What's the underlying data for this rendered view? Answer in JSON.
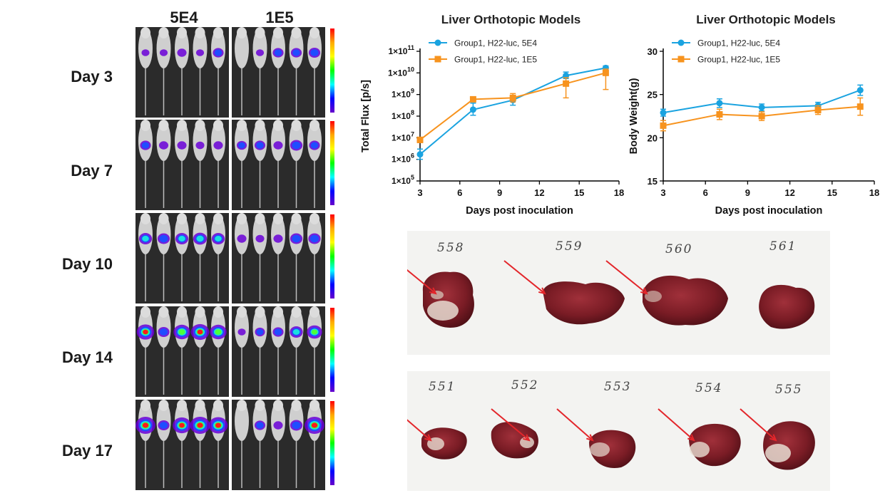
{
  "imaging": {
    "columns": [
      "5E4",
      "1E5"
    ],
    "days": [
      "Day 3",
      "Day 7",
      "Day 10",
      "Day 14",
      "Day 17"
    ],
    "scale_colors": [
      "#ff0000",
      "#ffaa00",
      "#ffff00",
      "#00ff00",
      "#00ffff",
      "#0000ff",
      "#6600cc"
    ]
  },
  "chart_data": [
    {
      "type": "line",
      "title": "Liver Orthotopic Models",
      "xlabel": "Days post inoculation",
      "ylabel": "Total Flux [p/s]",
      "yscale": "log",
      "xlim": [
        3,
        18
      ],
      "ylim": [
        100000,
        100000000000
      ],
      "x_ticks": [
        "3",
        "6",
        "9",
        "12",
        "15",
        "18"
      ],
      "y_tick_labels": [
        {
          "value": 100000,
          "mant": "1×10",
          "exp": "5"
        },
        {
          "value": 1000000,
          "mant": "1×10",
          "exp": "6"
        },
        {
          "value": 10000000,
          "mant": "1×10",
          "exp": "7"
        },
        {
          "value": 100000000,
          "mant": "1×10",
          "exp": "8"
        },
        {
          "value": 1000000000,
          "mant": "1×10",
          "exp": "9"
        },
        {
          "value": 10000000000,
          "mant": "1×10",
          "exp": "10"
        },
        {
          "value": 100000000000,
          "mant": "1×10",
          "exp": "11"
        }
      ],
      "legend_position": "top-left",
      "series": [
        {
          "name": "Group1, H22-luc, 5E4",
          "color": "#1aa3e0",
          "marker": "circle",
          "x": [
            3,
            7,
            10,
            14,
            17
          ],
          "y": [
            1700000,
            200000000,
            550000000,
            7500000000,
            17000000000
          ],
          "err_up": [
            3000000,
            400000000,
            900000000,
            11000000000,
            21000000000
          ],
          "err_down": [
            1000000,
            110000000,
            320000000,
            5500000000,
            14000000000
          ]
        },
        {
          "name": "Group1, H22-luc, 1E5",
          "color": "#f7931e",
          "marker": "square",
          "x": [
            3,
            7,
            10,
            14,
            17
          ],
          "y": [
            8000000,
            600000000,
            700000000,
            3200000000,
            10000000000
          ],
          "err_up": [
            10000000,
            700000000,
            1100000000,
            6000000000,
            15000000000
          ],
          "err_down": [
            6000000,
            500000000,
            450000000,
            700000000,
            1700000000
          ]
        }
      ]
    },
    {
      "type": "line",
      "title": "Liver Orthotopic Models",
      "xlabel": "Days post inoculation",
      "ylabel": "Body Weight(g)",
      "xlim": [
        3,
        18
      ],
      "ylim": [
        15,
        30
      ],
      "x_ticks": [
        "3",
        "6",
        "9",
        "12",
        "15",
        "18"
      ],
      "y_ticks": [
        "15",
        "20",
        "25",
        "30"
      ],
      "legend_position": "top-left",
      "series": [
        {
          "name": "Group1, H22-luc, 5E4",
          "color": "#1aa3e0",
          "marker": "circle",
          "x": [
            3,
            7,
            10,
            14,
            17
          ],
          "y": [
            22.9,
            24.0,
            23.5,
            23.7,
            25.5
          ],
          "err": [
            0.4,
            0.5,
            0.4,
            0.4,
            0.6
          ]
        },
        {
          "name": "Group1, H22-luc, 1E5",
          "color": "#f7931e",
          "marker": "square",
          "x": [
            3,
            7,
            10,
            14,
            17
          ],
          "y": [
            21.4,
            22.7,
            22.5,
            23.2,
            23.6
          ],
          "err": [
            0.6,
            0.6,
            0.5,
            0.5,
            1.0
          ]
        }
      ]
    }
  ],
  "photos": {
    "top_labels": [
      "558",
      "559",
      "560",
      "561"
    ],
    "bottom_labels": [
      "551",
      "552",
      "553",
      "554",
      "555"
    ],
    "arrow_color": "#e3262b"
  }
}
